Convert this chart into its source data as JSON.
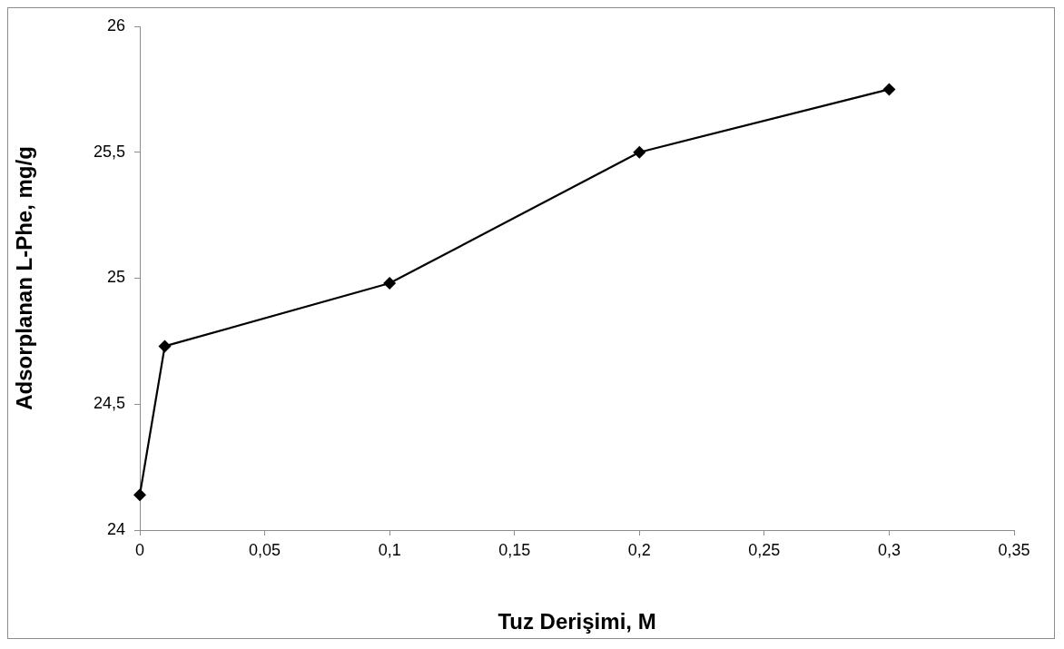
{
  "chart_data": {
    "type": "line",
    "xlabel": "Tuz Derişimi, M",
    "ylabel": "Adsorplanan L-Phe, mg/g",
    "x": [
      0,
      0.01,
      0.1,
      0.2,
      0.3
    ],
    "series": [
      {
        "color": "#000000",
        "values": [
          24.14,
          24.73,
          24.98,
          25.5,
          25.75
        ]
      }
    ],
    "xlim": [
      0,
      0.35
    ],
    "xticks": [
      0,
      {
        "value": 0.05,
        "label": "0,05"
      },
      {
        "value": 0.1,
        "label": "0,1"
      },
      {
        "value": 0.15,
        "label": "0,15"
      },
      {
        "value": 0.2,
        "label": "0,2"
      },
      {
        "value": 0.25,
        "label": "0,25"
      },
      {
        "value": 0.3,
        "label": "0,3"
      },
      {
        "value": 0.35,
        "label": "0,35"
      }
    ],
    "ylim": [
      24,
      26
    ],
    "yticks": [
      24,
      {
        "value": 24.5,
        "label": "24,5"
      },
      25,
      {
        "value": 25.5,
        "label": "25,5"
      },
      26
    ],
    "grid": false,
    "legend": false,
    "marker": "diamond",
    "line_style": "solid"
  }
}
